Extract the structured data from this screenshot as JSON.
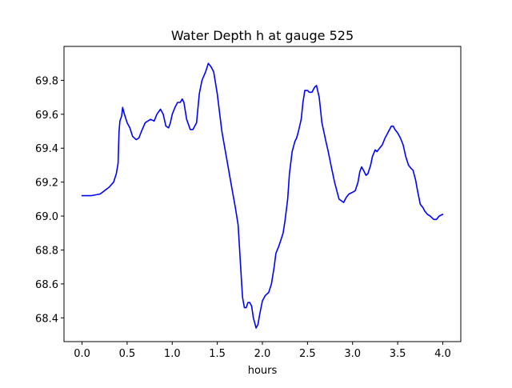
{
  "chart_data": {
    "type": "line",
    "title": "Water Depth h at gauge 525",
    "xlabel": "hours",
    "ylabel": "",
    "xlim": [
      -0.2,
      4.2
    ],
    "ylim": [
      68.26,
      70.0
    ],
    "x_ticks": [
      0.0,
      0.5,
      1.0,
      1.5,
      2.0,
      2.5,
      3.0,
      3.5,
      4.0
    ],
    "x_tick_labels": [
      "0.0",
      "0.5",
      "1.0",
      "1.5",
      "2.0",
      "2.5",
      "3.0",
      "3.5",
      "4.0"
    ],
    "y_ticks": [
      68.4,
      68.6,
      68.8,
      69.0,
      69.2,
      69.4,
      69.6,
      69.8
    ],
    "y_tick_labels": [
      "68.4",
      "68.6",
      "68.8",
      "69.0",
      "69.2",
      "69.4",
      "69.6",
      "69.8"
    ],
    "grid": false,
    "series": [
      {
        "color": "#0000ff",
        "x": [
          0.0,
          0.1,
          0.2,
          0.25,
          0.3,
          0.35,
          0.38,
          0.4,
          0.41,
          0.42,
          0.44,
          0.45,
          0.47,
          0.5,
          0.53,
          0.56,
          0.6,
          0.63,
          0.66,
          0.7,
          0.73,
          0.76,
          0.8,
          0.83,
          0.87,
          0.9,
          0.93,
          0.96,
          0.98,
          1.0,
          1.03,
          1.06,
          1.09,
          1.11,
          1.13,
          1.16,
          1.2,
          1.23,
          1.27,
          1.3,
          1.33,
          1.37,
          1.4,
          1.43,
          1.46,
          1.5,
          1.55,
          1.6,
          1.65,
          1.7,
          1.73,
          1.75,
          1.77,
          1.78,
          1.8,
          1.82,
          1.84,
          1.86,
          1.88,
          1.9,
          1.93,
          1.95,
          1.97,
          2.0,
          2.03,
          2.05,
          2.07,
          2.1,
          2.13,
          2.15,
          2.18,
          2.2,
          2.23,
          2.25,
          2.28,
          2.3,
          2.33,
          2.36,
          2.38,
          2.4,
          2.43,
          2.45,
          2.47,
          2.5,
          2.52,
          2.55,
          2.58,
          2.6,
          2.63,
          2.66,
          2.7,
          2.73,
          2.76,
          2.8,
          2.85,
          2.9,
          2.93,
          2.96,
          3.0,
          3.03,
          3.06,
          3.08,
          3.1,
          3.12,
          3.15,
          3.17,
          3.2,
          3.22,
          3.25,
          3.27,
          3.3,
          3.33,
          3.36,
          3.38,
          3.4,
          3.43,
          3.45,
          3.47,
          3.5,
          3.53,
          3.56,
          3.59,
          3.62,
          3.65,
          3.67,
          3.7,
          3.72,
          3.75,
          3.78,
          3.8,
          3.83,
          3.86,
          3.9,
          3.93,
          3.96,
          4.0
        ],
        "values": [
          69.12,
          69.12,
          69.13,
          69.15,
          69.17,
          69.2,
          69.25,
          69.31,
          69.5,
          69.56,
          69.59,
          69.64,
          69.6,
          69.55,
          69.52,
          69.47,
          69.45,
          69.46,
          69.5,
          69.55,
          69.56,
          69.57,
          69.56,
          69.6,
          69.63,
          69.6,
          69.53,
          69.52,
          69.55,
          69.6,
          69.64,
          69.67,
          69.67,
          69.69,
          69.67,
          69.57,
          69.51,
          69.51,
          69.55,
          69.72,
          69.8,
          69.85,
          69.9,
          69.88,
          69.85,
          69.72,
          69.5,
          69.35,
          69.2,
          69.05,
          68.95,
          68.78,
          68.6,
          68.52,
          68.46,
          68.46,
          68.49,
          68.49,
          68.47,
          68.4,
          68.34,
          68.36,
          68.42,
          68.5,
          68.53,
          68.54,
          68.55,
          68.6,
          68.7,
          68.78,
          68.82,
          68.85,
          68.9,
          68.97,
          69.1,
          69.25,
          69.38,
          69.44,
          69.46,
          69.5,
          69.57,
          69.67,
          69.74,
          69.74,
          69.73,
          69.73,
          69.76,
          69.77,
          69.7,
          69.55,
          69.45,
          69.38,
          69.3,
          69.2,
          69.1,
          69.08,
          69.11,
          69.13,
          69.14,
          69.15,
          69.2,
          69.26,
          69.29,
          69.27,
          69.24,
          69.25,
          69.3,
          69.35,
          69.39,
          69.38,
          69.4,
          69.42,
          69.46,
          69.48,
          69.5,
          69.53,
          69.53,
          69.51,
          69.49,
          69.46,
          69.42,
          69.35,
          69.3,
          69.28,
          69.27,
          69.21,
          69.15,
          69.07,
          69.05,
          69.03,
          69.01,
          69.0,
          68.98,
          68.98,
          69.0,
          69.01
        ]
      }
    ]
  }
}
